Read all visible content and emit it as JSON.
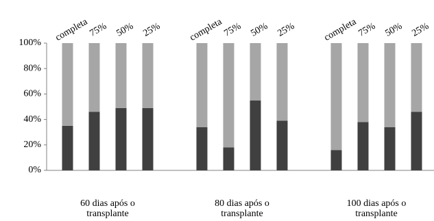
{
  "chart_data": {
    "type": "stacked-bar",
    "categories": [
      "completa",
      "75%",
      "50%",
      "25%",
      "completa",
      "75%",
      "50%",
      "25%",
      "completa",
      "75%",
      "50%",
      "25%"
    ],
    "groups": [
      [
        "60 dias após o",
        "transplante"
      ],
      [
        "80 dias após o",
        "transplante"
      ],
      [
        "100 dias após o",
        "transplante"
      ]
    ],
    "series": [
      {
        "color": "#404040",
        "values": [
          35,
          46,
          49,
          49,
          34,
          18,
          55,
          39,
          16,
          38,
          34,
          46
        ]
      },
      {
        "color": "#a6a6a6",
        "values": [
          65,
          54,
          51,
          51,
          66,
          82,
          45,
          61,
          84,
          62,
          66,
          54
        ]
      }
    ],
    "ylim": [
      0,
      100
    ],
    "yticks": [
      {
        "value": 0,
        "label": "0%"
      },
      {
        "value": 20,
        "label": "20%"
      },
      {
        "value": 40,
        "label": "40%"
      },
      {
        "value": 60,
        "label": "60%"
      },
      {
        "value": 80,
        "label": "80%"
      },
      {
        "value": 100,
        "label": "100%"
      }
    ]
  }
}
